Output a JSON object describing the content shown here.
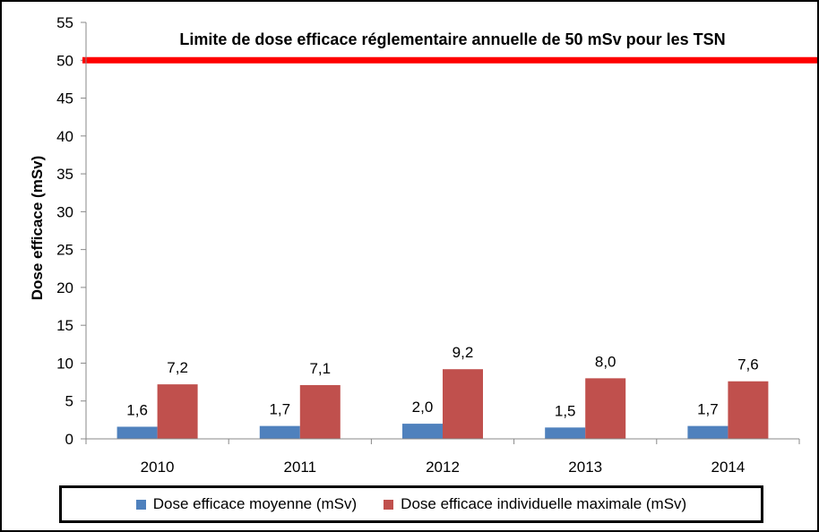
{
  "chart_data": {
    "type": "bar",
    "categories": [
      "2010",
      "2011",
      "2012",
      "2013",
      "2014"
    ],
    "series": [
      {
        "name": "Dose efficace moyenne (mSv)",
        "values": [
          1.6,
          1.7,
          2.0,
          1.5,
          1.7
        ],
        "labels": [
          "1,6",
          "1,7",
          "2,0",
          "1,5",
          "1,7"
        ],
        "color": "#4f81bd"
      },
      {
        "name": "Dose efficace individuelle maximale (mSv)",
        "values": [
          7.2,
          7.1,
          9.2,
          8.0,
          7.6
        ],
        "labels": [
          "7,2",
          "7,1",
          "9,2",
          "8,0",
          "7,6"
        ],
        "color": "#c0504d"
      }
    ],
    "title": "",
    "xlabel": "",
    "ylabel": "Dose efficace  (mSv)",
    "ylim": [
      0,
      55
    ],
    "yticks": [
      0,
      5,
      10,
      15,
      20,
      25,
      30,
      35,
      40,
      45,
      50,
      55
    ],
    "grid": false,
    "legend_position": "bottom",
    "reference_line": {
      "value": 50,
      "color": "#ff0000",
      "label": "Limite de dose  efficace réglementaire annuelle de 50 mSv pour  les TSN"
    }
  }
}
